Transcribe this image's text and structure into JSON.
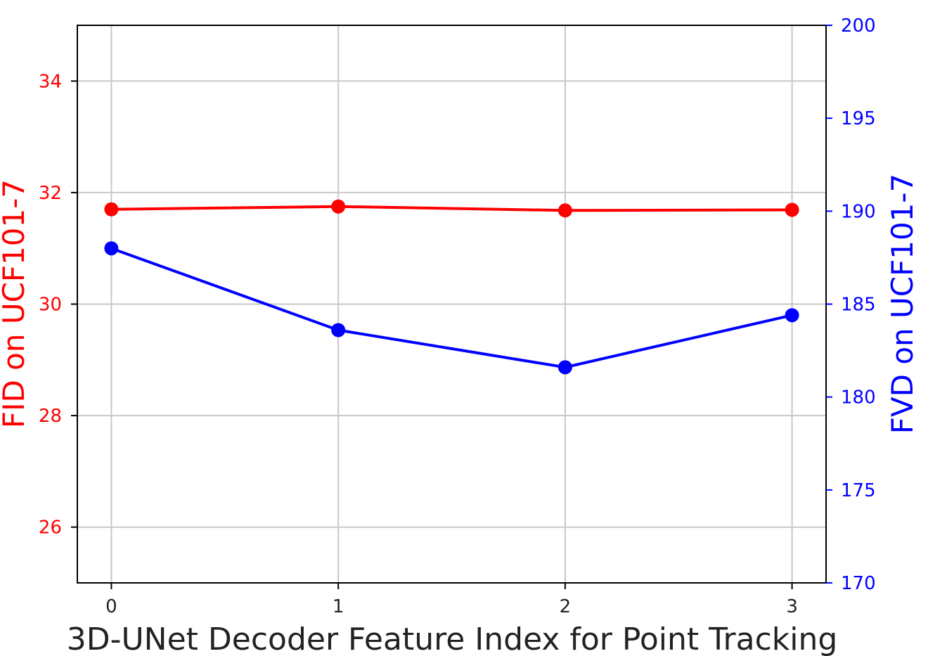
{
  "chart_data": {
    "type": "line",
    "title": "",
    "xlabel": "3D-UNet Decoder Feature Index for Point Tracking",
    "ylabel_left": "FID on UCF101-7",
    "ylabel_right": "FVD on UCF101-7",
    "x": [
      0,
      1,
      2,
      3
    ],
    "x_ticks": [
      "0",
      "1",
      "2",
      "3"
    ],
    "xlim": [
      -0.15,
      3.15
    ],
    "ylim_left": [
      25,
      35
    ],
    "yticks_left": [
      "26",
      "28",
      "30",
      "32",
      "34"
    ],
    "ylim_right": [
      170,
      200
    ],
    "yticks_right": [
      "170",
      "175",
      "180",
      "185",
      "190",
      "195",
      "200"
    ],
    "grid": true,
    "legend": "none",
    "series": [
      {
        "axis": "left",
        "color": "#ff0000",
        "values": [
          31.7,
          31.75,
          31.68,
          31.69
        ]
      },
      {
        "axis": "right",
        "color": "#0000ff",
        "values": [
          188.0,
          183.6,
          181.6,
          184.4
        ]
      }
    ]
  }
}
